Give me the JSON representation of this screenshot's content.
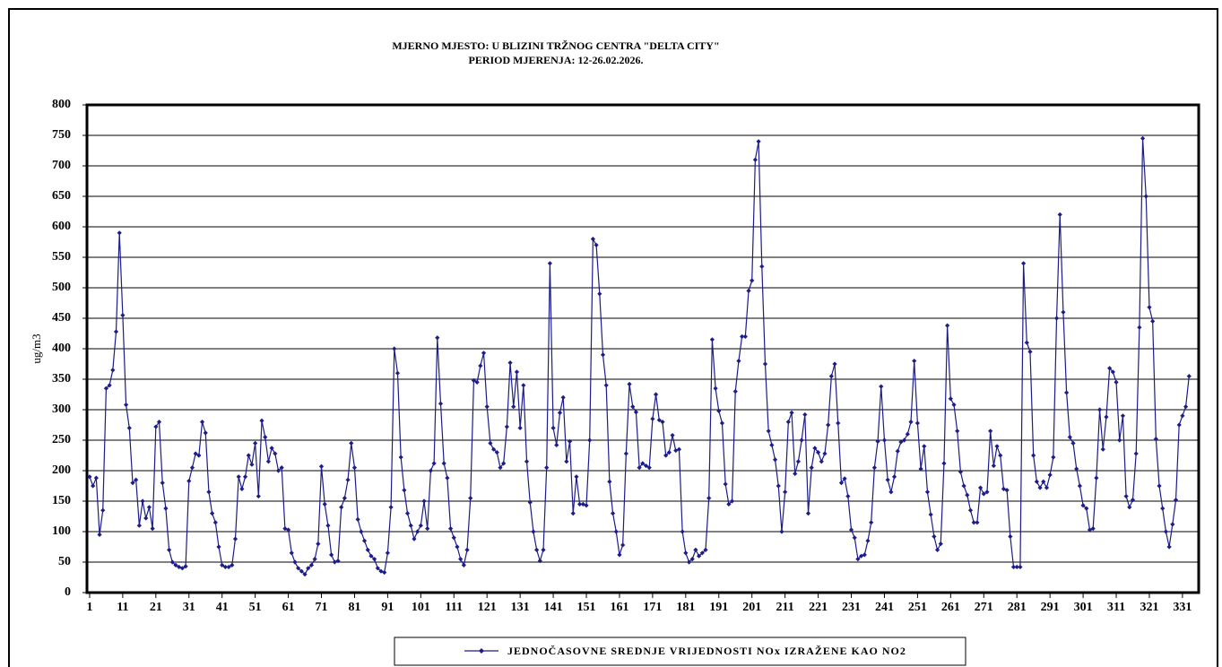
{
  "chart_data": {
    "type": "line",
    "title": "MJERNO MJESTO: U BLIZINI TRŽNOG CENTRA \"DELTA CITY\"",
    "subtitle": "PERIOD MJERENJA:  12-26.02.2026.",
    "y_label": "ug/m3",
    "xlim": [
      0.2,
      335.9
    ],
    "xticks": [
      1,
      11,
      21,
      31,
      41,
      51,
      61,
      71,
      81,
      91,
      101,
      111,
      121,
      131,
      141,
      151,
      161,
      171,
      181,
      191,
      201,
      211,
      221,
      231,
      241,
      251,
      261,
      271,
      281,
      291,
      301,
      311,
      321,
      331
    ],
    "ylim": [
      0,
      800
    ],
    "yticks": [
      0,
      50,
      100,
      150,
      200,
      250,
      300,
      350,
      400,
      450,
      500,
      550,
      600,
      650,
      700,
      750,
      800
    ],
    "grid": true,
    "legend": "bottom",
    "series": [
      {
        "name": "JEDNOČASOVNE SREDNJE VRIJEDNOSTI NOx IZRAŽENE KAO NO2",
        "color": "#1c1c8a",
        "values": [
          190,
          175,
          188,
          95,
          135,
          335,
          340,
          365,
          428,
          590,
          455,
          308,
          270,
          180,
          185,
          110,
          150,
          122,
          140,
          105,
          272,
          280,
          180,
          138,
          70,
          50,
          45,
          42,
          40,
          43,
          183,
          205,
          228,
          225,
          280,
          262,
          165,
          130,
          115,
          75,
          45,
          42,
          42,
          45,
          88,
          190,
          170,
          190,
          225,
          210,
          245,
          158,
          282,
          255,
          215,
          237,
          228,
          200,
          205,
          105,
          103,
          65,
          50,
          40,
          35,
          30,
          40,
          45,
          55,
          80,
          207,
          145,
          110,
          62,
          50,
          52,
          140,
          155,
          185,
          245,
          205,
          120,
          100,
          85,
          70,
          60,
          55,
          40,
          35,
          33,
          65,
          140,
          400,
          360,
          222,
          168,
          130,
          110,
          88,
          100,
          110,
          150,
          105,
          200,
          212,
          418,
          310,
          212,
          188,
          105,
          90,
          75,
          55,
          45,
          70,
          155,
          348,
          345,
          372,
          393,
          305,
          245,
          235,
          230,
          205,
          212,
          272,
          377,
          305,
          362,
          270,
          340,
          215,
          148,
          100,
          70,
          52,
          70,
          205,
          540,
          270,
          242,
          295,
          320,
          215,
          248,
          130,
          190,
          145,
          145,
          143,
          250,
          580,
          570,
          490,
          390,
          340,
          182,
          130,
          100,
          62,
          78,
          228,
          342,
          305,
          296,
          205,
          212,
          208,
          205,
          285,
          325,
          283,
          280,
          225,
          230,
          258,
          233,
          235,
          100,
          65,
          50,
          55,
          70,
          60,
          65,
          70,
          155,
          415,
          335,
          298,
          278,
          178,
          145,
          150,
          330,
          380,
          420,
          420,
          495,
          512,
          710,
          740,
          535,
          375,
          265,
          242,
          218,
          175,
          100,
          165,
          280,
          295,
          195,
          215,
          250,
          292,
          130,
          205,
          237,
          230,
          215,
          228,
          275,
          355,
          375,
          278,
          180,
          187,
          158,
          103,
          90,
          55,
          60,
          62,
          85,
          115,
          205,
          248,
          338,
          250,
          185,
          165,
          190,
          232,
          247,
          250,
          260,
          280,
          380,
          278,
          203,
          240,
          165,
          128,
          92,
          70,
          80,
          212,
          438,
          318,
          308,
          265,
          198,
          175,
          160,
          135,
          115,
          115,
          172,
          162,
          165,
          265,
          208,
          240,
          225,
          170,
          168,
          92,
          42,
          42,
          42,
          540,
          410,
          395,
          225,
          182,
          172,
          182,
          172,
          193,
          222,
          450,
          620,
          460,
          328,
          255,
          245,
          203,
          175,
          143,
          138,
          103,
          105,
          188,
          300,
          235,
          288,
          368,
          362,
          345,
          250,
          290,
          158,
          140,
          152,
          228,
          435,
          745,
          650,
          468,
          445,
          252,
          175,
          138,
          100,
          75,
          112,
          152,
          275,
          290,
          305,
          355
        ]
      }
    ]
  }
}
